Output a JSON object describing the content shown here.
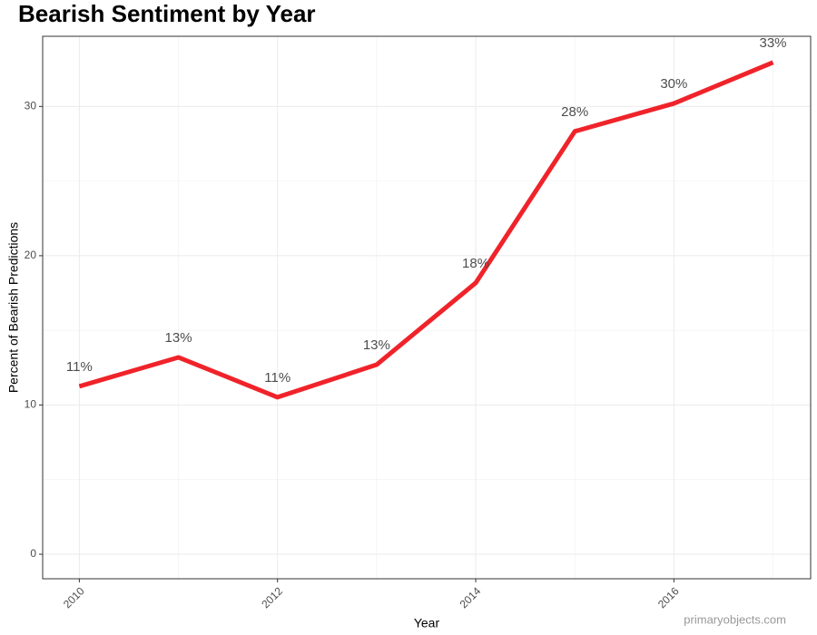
{
  "chart_data": {
    "type": "line",
    "title": "Bearish Sentiment by Year",
    "x_label": "Year",
    "y_label": "Percent of Bearish Predictions",
    "x": [
      2010,
      2011,
      2012,
      2013,
      2014,
      2015,
      2016,
      2017
    ],
    "values": [
      11.25,
      13.19,
      10.52,
      12.7,
      18.18,
      28.33,
      30.2,
      32.95
    ],
    "value_labels": [
      "11%",
      "13%",
      "11%",
      "13%",
      "18%",
      "28%",
      "30%",
      "33%"
    ],
    "color": "#f0232a",
    "xlim": [
      2009.63,
      2017.38
    ],
    "xticks": [
      2010,
      2012,
      2014,
      2016
    ],
    "ylim": [
      -1.64,
      34.7
    ],
    "yticks": [
      0,
      10,
      20,
      30
    ],
    "grid": true,
    "watermark": "primaryobjects.com"
  }
}
